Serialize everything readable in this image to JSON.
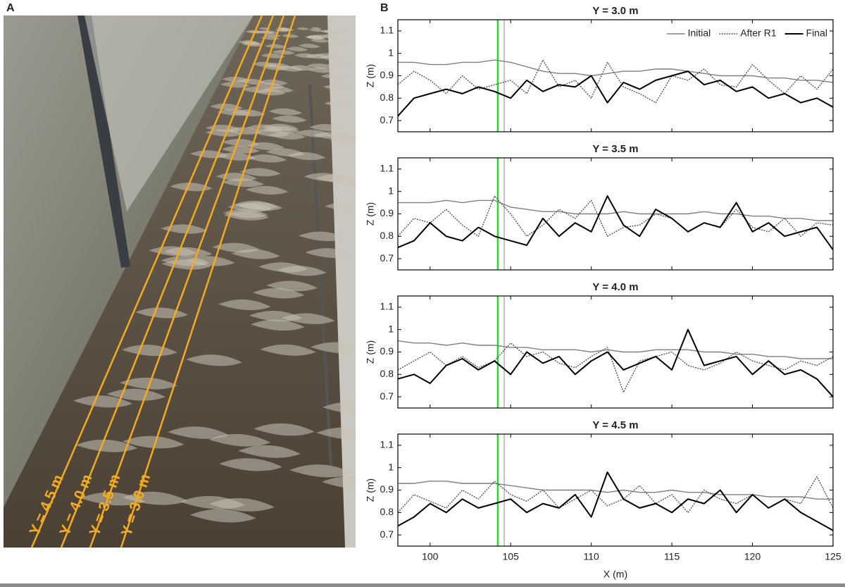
{
  "panels": {
    "a": "A",
    "b": "B"
  },
  "photo": {
    "labels": [
      "Y = 4.5 m",
      "Y = 4.0 m",
      "Y = 3.5 m",
      "Y = 3.0 m"
    ],
    "line_color": "#f5ab1e"
  },
  "chart_data": [
    {
      "type": "line",
      "title": "Y = 3.0 m",
      "ylabel": "Z (m)",
      "legend": "upper right",
      "xlim": [
        98,
        125
      ],
      "xticks": [
        100,
        105,
        110,
        115,
        120,
        125
      ],
      "ylim": [
        0.65,
        1.15
      ],
      "yticks": [
        0.7,
        0.8,
        0.9,
        1,
        1.1
      ],
      "markers": [
        {
          "x": 104.2,
          "color": "#22dd22"
        },
        {
          "x": 104.6,
          "color": "#a0a0a0"
        }
      ],
      "x": [
        98,
        99,
        100,
        101,
        102,
        103,
        104,
        105,
        106,
        107,
        108,
        109,
        110,
        111,
        112,
        113,
        114,
        115,
        116,
        117,
        118,
        119,
        120,
        121,
        122,
        123,
        124,
        125
      ],
      "series": [
        {
          "name": "Initial",
          "color": "#808080",
          "dash": "solid",
          "values": [
            0.96,
            0.96,
            0.95,
            0.95,
            0.96,
            0.96,
            0.97,
            0.96,
            0.94,
            0.92,
            0.91,
            0.91,
            0.9,
            0.91,
            0.92,
            0.92,
            0.93,
            0.93,
            0.92,
            0.91,
            0.9,
            0.9,
            0.9,
            0.89,
            0.89,
            0.88,
            0.88,
            0.87
          ]
        },
        {
          "name": "After R1",
          "color": "#555555",
          "dash": "dotted",
          "values": [
            0.86,
            0.92,
            0.88,
            0.82,
            0.9,
            0.84,
            0.86,
            0.88,
            0.82,
            0.97,
            0.85,
            0.88,
            0.8,
            0.96,
            0.85,
            0.82,
            0.78,
            0.9,
            0.88,
            0.93,
            0.86,
            0.85,
            0.95,
            0.88,
            0.82,
            0.9,
            0.84,
            0.93
          ]
        },
        {
          "name": "Final",
          "color": "#000000",
          "dash": "solid",
          "values": [
            0.72,
            0.8,
            0.82,
            0.84,
            0.82,
            0.85,
            0.83,
            0.8,
            0.88,
            0.83,
            0.86,
            0.85,
            0.9,
            0.78,
            0.87,
            0.84,
            0.88,
            0.9,
            0.92,
            0.86,
            0.88,
            0.83,
            0.85,
            0.8,
            0.82,
            0.78,
            0.8,
            0.76
          ]
        }
      ]
    },
    {
      "type": "line",
      "title": "Y = 3.5 m",
      "ylabel": "Z (m)",
      "xlim": [
        98,
        125
      ],
      "xticks": [
        100,
        105,
        110,
        115,
        120,
        125
      ],
      "ylim": [
        0.65,
        1.15
      ],
      "yticks": [
        0.7,
        0.8,
        0.9,
        1,
        1.1
      ],
      "markers": [
        {
          "x": 104.2,
          "color": "#22dd22"
        },
        {
          "x": 104.6,
          "color": "#a0a0a0"
        }
      ],
      "x": [
        98,
        99,
        100,
        101,
        102,
        103,
        104,
        105,
        106,
        107,
        108,
        109,
        110,
        111,
        112,
        113,
        114,
        115,
        116,
        117,
        118,
        119,
        120,
        121,
        122,
        123,
        124,
        125
      ],
      "series": [
        {
          "color": "#808080",
          "dash": "solid",
          "values": [
            0.95,
            0.95,
            0.95,
            0.96,
            0.95,
            0.96,
            0.96,
            0.93,
            0.92,
            0.91,
            0.91,
            0.9,
            0.9,
            0.9,
            0.91,
            0.9,
            0.9,
            0.9,
            0.9,
            0.91,
            0.9,
            0.9,
            0.89,
            0.89,
            0.88,
            0.88,
            0.87,
            0.87
          ]
        },
        {
          "color": "#555555",
          "dash": "dotted",
          "values": [
            0.8,
            0.88,
            0.86,
            0.92,
            0.85,
            0.8,
            0.98,
            0.9,
            0.8,
            0.85,
            0.92,
            0.88,
            0.96,
            0.8,
            0.84,
            0.85,
            0.9,
            0.88,
            0.82,
            0.86,
            0.84,
            0.92,
            0.84,
            0.82,
            0.88,
            0.8,
            0.86,
            0.85
          ]
        },
        {
          "color": "#000000",
          "dash": "solid",
          "values": [
            0.75,
            0.78,
            0.86,
            0.8,
            0.78,
            0.84,
            0.8,
            0.78,
            0.76,
            0.88,
            0.8,
            0.86,
            0.82,
            0.98,
            0.85,
            0.8,
            0.92,
            0.88,
            0.82,
            0.86,
            0.84,
            0.95,
            0.82,
            0.86,
            0.8,
            0.82,
            0.84,
            0.74
          ]
        }
      ]
    },
    {
      "type": "line",
      "title": "Y = 4.0 m",
      "ylabel": "Z (m)",
      "xlim": [
        98,
        125
      ],
      "xticks": [
        100,
        105,
        110,
        115,
        120,
        125
      ],
      "ylim": [
        0.65,
        1.15
      ],
      "yticks": [
        0.7,
        0.8,
        0.9,
        1,
        1.1
      ],
      "markers": [
        {
          "x": 104.2,
          "color": "#22dd22"
        },
        {
          "x": 104.6,
          "color": "#a0a0a0"
        }
      ],
      "x": [
        98,
        99,
        100,
        101,
        102,
        103,
        104,
        105,
        106,
        107,
        108,
        109,
        110,
        111,
        112,
        113,
        114,
        115,
        116,
        117,
        118,
        119,
        120,
        121,
        122,
        123,
        124,
        125
      ],
      "series": [
        {
          "color": "#808080",
          "dash": "solid",
          "values": [
            0.95,
            0.94,
            0.94,
            0.93,
            0.94,
            0.93,
            0.93,
            0.92,
            0.92,
            0.91,
            0.91,
            0.91,
            0.9,
            0.91,
            0.9,
            0.9,
            0.91,
            0.91,
            0.91,
            0.9,
            0.9,
            0.89,
            0.89,
            0.88,
            0.88,
            0.87,
            0.87,
            0.87
          ]
        },
        {
          "color": "#555555",
          "dash": "dotted",
          "values": [
            0.82,
            0.86,
            0.9,
            0.84,
            0.88,
            0.83,
            0.86,
            0.94,
            0.88,
            0.9,
            0.85,
            0.83,
            0.88,
            0.92,
            0.72,
            0.86,
            0.88,
            0.9,
            0.84,
            0.82,
            0.85,
            0.9,
            0.86,
            0.84,
            0.82,
            0.86,
            0.84,
            0.88
          ]
        },
        {
          "color": "#000000",
          "dash": "solid",
          "values": [
            0.78,
            0.8,
            0.76,
            0.84,
            0.87,
            0.82,
            0.86,
            0.8,
            0.9,
            0.85,
            0.88,
            0.8,
            0.86,
            0.9,
            0.82,
            0.85,
            0.88,
            0.82,
            1.0,
            0.84,
            0.86,
            0.88,
            0.8,
            0.86,
            0.8,
            0.82,
            0.78,
            0.7
          ]
        }
      ]
    },
    {
      "type": "line",
      "title": "Y = 4.5 m",
      "ylabel": "Z (m)",
      "xlabel": "X (m)",
      "xtick_labels": true,
      "xlim": [
        98,
        125
      ],
      "xticks": [
        100,
        105,
        110,
        115,
        120,
        125
      ],
      "ylim": [
        0.65,
        1.15
      ],
      "yticks": [
        0.7,
        0.8,
        0.9,
        1,
        1.1
      ],
      "markers": [
        {
          "x": 104.2,
          "color": "#22dd22"
        },
        {
          "x": 104.6,
          "color": "#a0a0a0"
        }
      ],
      "x": [
        98,
        99,
        100,
        101,
        102,
        103,
        104,
        105,
        106,
        107,
        108,
        109,
        110,
        111,
        112,
        113,
        114,
        115,
        116,
        117,
        118,
        119,
        120,
        121,
        122,
        123,
        124,
        125
      ],
      "series": [
        {
          "color": "#808080",
          "dash": "solid",
          "values": [
            0.93,
            0.93,
            0.94,
            0.94,
            0.93,
            0.93,
            0.93,
            0.92,
            0.91,
            0.9,
            0.9,
            0.9,
            0.9,
            0.89,
            0.9,
            0.89,
            0.89,
            0.9,
            0.89,
            0.89,
            0.88,
            0.88,
            0.88,
            0.87,
            0.87,
            0.87,
            0.86,
            0.86
          ]
        },
        {
          "color": "#555555",
          "dash": "dotted",
          "values": [
            0.8,
            0.88,
            0.85,
            0.82,
            0.9,
            0.86,
            0.94,
            0.88,
            0.85,
            0.9,
            0.82,
            0.86,
            0.9,
            0.83,
            0.86,
            0.92,
            0.84,
            0.88,
            0.8,
            0.9,
            0.86,
            0.84,
            0.88,
            0.82,
            0.86,
            0.84,
            0.96,
            0.82
          ]
        },
        {
          "color": "#000000",
          "dash": "solid",
          "values": [
            0.74,
            0.78,
            0.84,
            0.8,
            0.86,
            0.82,
            0.84,
            0.86,
            0.8,
            0.84,
            0.82,
            0.88,
            0.78,
            0.98,
            0.86,
            0.82,
            0.84,
            0.8,
            0.86,
            0.84,
            0.9,
            0.8,
            0.88,
            0.82,
            0.86,
            0.8,
            0.76,
            0.72
          ]
        }
      ]
    }
  ]
}
